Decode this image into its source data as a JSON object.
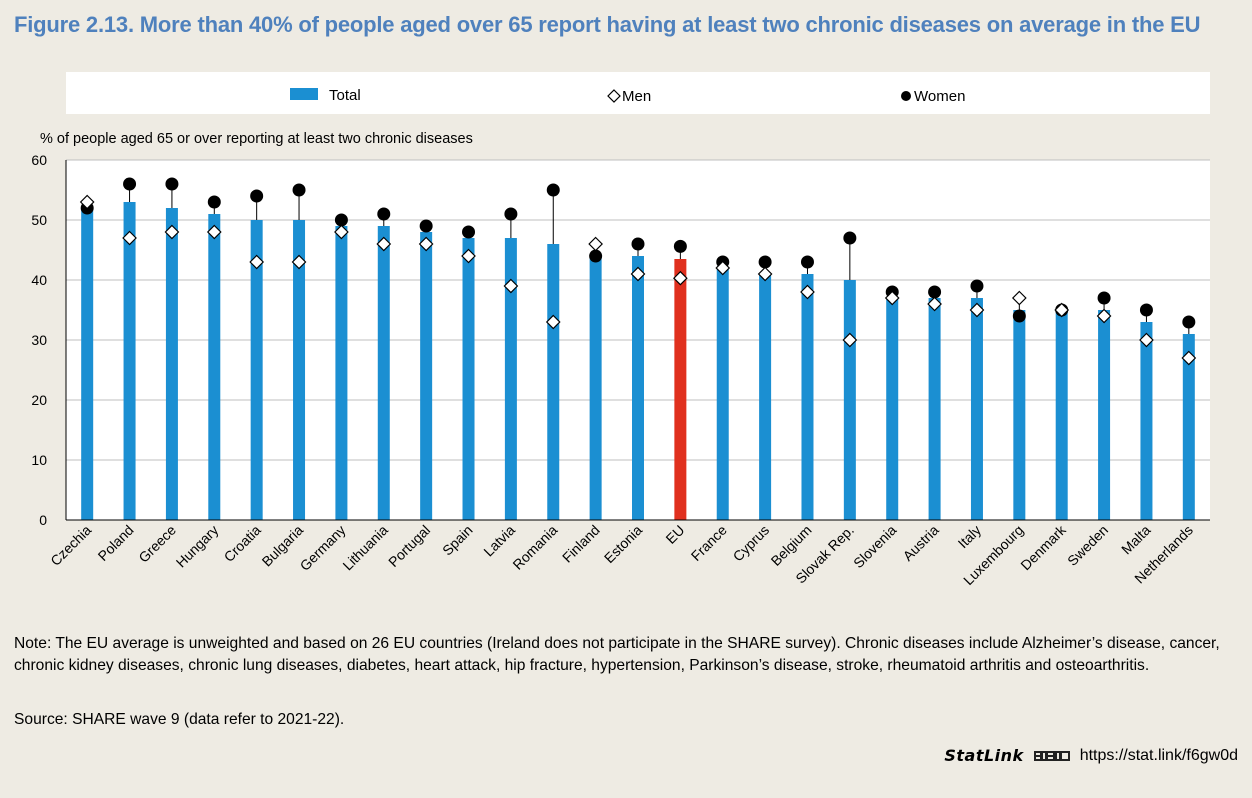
{
  "figure": {
    "title": "Figure 2.13. More than 40% of people aged over 65 report having at least two chronic diseases on average in the EU",
    "note": "Note: The EU average is unweighted and based on 26 EU countries (Ireland does not participate in the SHARE survey). Chronic diseases include Alzheimer’s disease, cancer, chronic kidney diseases, chronic lung diseases, diabetes, heart attack, hip fracture, hypertension, Parkinson’s disease, stroke, rheumatoid arthritis and osteoarthritis.",
    "source": "Source: SHARE wave 9 (data refer to 2021-22).",
    "statlink_brand": "StatLink",
    "statlink_url": "https://stat.link/f6gw0d"
  },
  "colors": {
    "bar": "#1b8fd2",
    "highlight_bar": "#e0301e",
    "title": "#4f81bd",
    "background": "#eeebe3",
    "plot_background": "#ffffff",
    "grid": "#bfbfbf"
  },
  "chart_data": {
    "type": "bar",
    "ylabel": "% of people aged 65 or over reporting at least two chronic diseases",
    "ylim": [
      0,
      60
    ],
    "yticks": [
      0,
      10,
      20,
      30,
      40,
      50,
      60
    ],
    "legend": {
      "position": "top",
      "entries": [
        "Total",
        "Men",
        "Women"
      ]
    },
    "highlight_category": "EU",
    "categories": [
      "Czechia",
      "Poland",
      "Greece",
      "Hungary",
      "Croatia",
      "Bulgaria",
      "Germany",
      "Lithuania",
      "Portugal",
      "Spain",
      "Latvia",
      "Romania",
      "Finland",
      "Estonia",
      "EU",
      "France",
      "Cyprus",
      "Belgium",
      "Slovak Rep.",
      "Slovenia",
      "Austria",
      "Italy",
      "Luxembourg",
      "Denmark",
      "Sweden",
      "Malta",
      "Netherlands"
    ],
    "series": [
      {
        "name": "Total",
        "marker": "bar",
        "values": [
          52,
          53,
          52,
          51,
          50,
          50,
          49,
          49,
          48,
          47,
          47,
          46,
          44,
          44,
          43.5,
          42,
          41,
          41,
          40,
          37,
          37,
          37,
          35,
          35,
          35,
          33,
          31
        ]
      },
      {
        "name": "Men",
        "marker": "open-diamond",
        "values": [
          53,
          47,
          48,
          48,
          43,
          43,
          48,
          46,
          46,
          44,
          39,
          33,
          46,
          41,
          40.3,
          42,
          41,
          38,
          30,
          37,
          36,
          35,
          37,
          35,
          34,
          30,
          27
        ]
      },
      {
        "name": "Women",
        "marker": "filled-circle",
        "values": [
          52,
          56,
          56,
          53,
          54,
          55,
          50,
          51,
          49,
          48,
          51,
          55,
          44,
          46,
          45.6,
          43,
          43,
          43,
          47,
          38,
          38,
          39,
          34,
          35,
          37,
          35,
          33
        ]
      }
    ]
  }
}
